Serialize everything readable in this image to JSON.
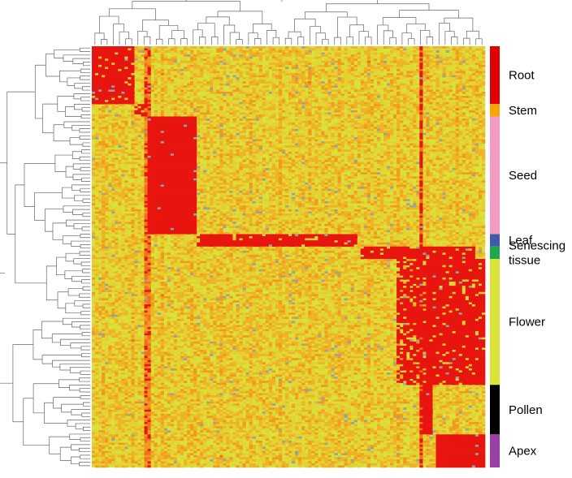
{
  "chart_data": {
    "type": "heatmap",
    "title": "",
    "xlabel": "",
    "ylabel": "",
    "clustering": {
      "row_dendrogram": true,
      "column_dendrogram": true
    },
    "colors": {
      "high": "#e8140f",
      "mid": "#f29a1f",
      "low": "#d9e23a",
      "missing": "#9aa39a"
    },
    "row_groups": [
      {
        "label": "Root",
        "label_lines": [
          "Root"
        ],
        "color": "#e00000",
        "rows": 28
      },
      {
        "label": "Stem",
        "label_lines": [
          "Stem"
        ],
        "color": "#f7a500",
        "rows": 6
      },
      {
        "label": "Seed",
        "label_lines": [
          "Seed"
        ],
        "color": "#f59bc3",
        "rows": 57
      },
      {
        "label": "Leaf",
        "label_lines": [
          "Leaf"
        ],
        "color": "#3e5ba8",
        "rows": 6
      },
      {
        "label": "Senescing tissue",
        "label_lines": [
          "Senescing",
          "tissue"
        ],
        "color": "#1aa84a",
        "rows": 6
      },
      {
        "label": "Flower",
        "label_lines": [
          "Flower"
        ],
        "color": "#d9e33a",
        "rows": 61
      },
      {
        "label": "Pollen",
        "label_lines": [
          "Pollen"
        ],
        "color": "#000000",
        "rows": 24
      },
      {
        "label": "Apex",
        "label_lines": [
          "Apex"
        ],
        "color": "#9b3fa6",
        "rows": 16
      }
    ],
    "column_blocks": [
      {
        "group": "Root",
        "col_start": 0.0,
        "col_end": 0.105
      },
      {
        "group": "Stem",
        "col_start": 0.105,
        "col_end": 0.13
      },
      {
        "group": "Seed",
        "col_start": 0.165,
        "col_end": 0.26
      },
      {
        "group": "Leaf",
        "col_start": 0.265,
        "col_end": 0.67
      },
      {
        "group": "Senescing tissue",
        "col_start": 0.68,
        "col_end": 0.97
      },
      {
        "group": "Flower",
        "col_start": 0.85,
        "col_end": 1.0
      },
      {
        "group": "Pollen",
        "col_start": 1.0,
        "col_end": 1.02
      },
      {
        "group": "Apex",
        "col_start": 1.03,
        "col_end": 1.18
      }
    ],
    "n_columns": 120
  }
}
